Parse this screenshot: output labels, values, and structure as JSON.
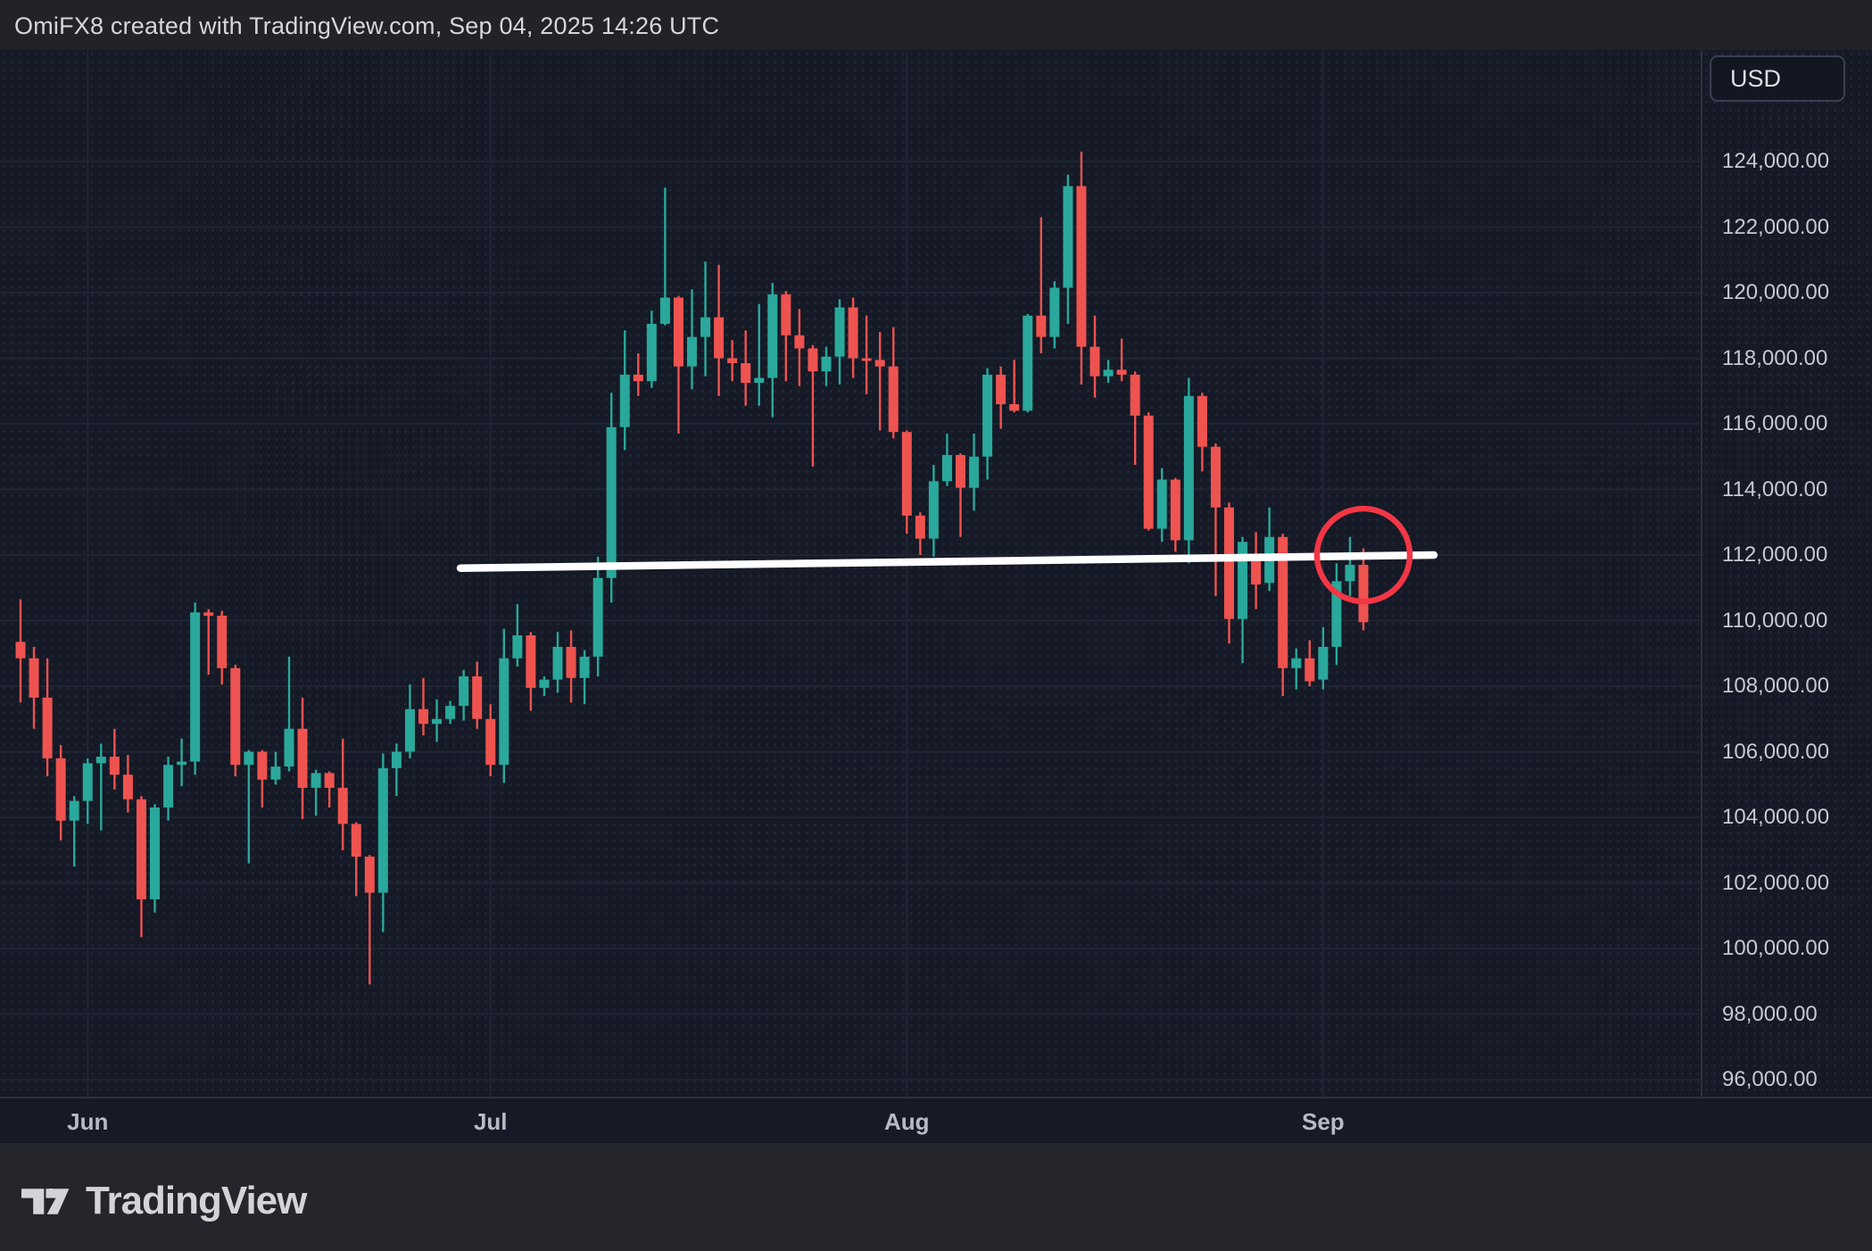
{
  "header": {
    "title": "OmiFX8 created with TradingView.com, Sep 04, 2025 14:26 UTC"
  },
  "price_axis": {
    "currency_label": "USD",
    "ticks": [
      {
        "label": "124,000.00",
        "value": 124000
      },
      {
        "label": "122,000.00",
        "value": 122000
      },
      {
        "label": "120,000.00",
        "value": 120000
      },
      {
        "label": "118,000.00",
        "value": 118000
      },
      {
        "label": "116,000.00",
        "value": 116000
      },
      {
        "label": "114,000.00",
        "value": 114000
      },
      {
        "label": "112,000.00",
        "value": 112000
      },
      {
        "label": "110,000.00",
        "value": 110000
      },
      {
        "label": "108,000.00",
        "value": 108000
      },
      {
        "label": "106,000.00",
        "value": 106000
      },
      {
        "label": "104,000.00",
        "value": 104000
      },
      {
        "label": "102,000.00",
        "value": 102000
      },
      {
        "label": "100,000.00",
        "value": 100000
      },
      {
        "label": "98,000.00",
        "value": 98000
      },
      {
        "label": "96,000.00",
        "value": 96000
      }
    ]
  },
  "time_axis": {
    "months": [
      {
        "label": "Jun",
        "day_index": 5
      },
      {
        "label": "Jul",
        "day_index": 35
      },
      {
        "label": "Aug",
        "day_index": 66
      },
      {
        "label": "Sep",
        "day_index": 97
      }
    ]
  },
  "footer": {
    "brand_name": "TradingView"
  },
  "style": {
    "up_color": "#2aa89b",
    "down_color": "#ef5350",
    "trendline_color": "#ffffff",
    "circle_color": "#f23645",
    "grid_color": "#1f2533",
    "pane_bg": "#151a26",
    "chrome_bg": "#24262b",
    "axis_text_color": "#c6c9d1",
    "separator_color": "#2c313d"
  },
  "chart_data": {
    "type": "candlestick",
    "symbol_currency": "USD",
    "interval": "1D",
    "date_range": [
      "2025-05-27",
      "2025-09-04"
    ],
    "ylim": [
      95500,
      127400
    ],
    "grid": "on",
    "candles_format": [
      "date",
      "open",
      "high",
      "low",
      "close"
    ],
    "candles": [
      [
        "2025-05-27",
        109350,
        110650,
        107500,
        108850
      ],
      [
        "2025-05-28",
        108850,
        109200,
        106700,
        107650
      ],
      [
        "2025-05-29",
        107650,
        108850,
        105250,
        105800
      ],
      [
        "2025-05-30",
        105800,
        106200,
        103300,
        103900
      ],
      [
        "2025-05-31",
        103900,
        104650,
        102500,
        104500
      ],
      [
        "2025-06-01",
        104500,
        105800,
        103800,
        105650
      ],
      [
        "2025-06-02",
        105650,
        106250,
        103600,
        105850
      ],
      [
        "2025-06-03",
        105850,
        106700,
        104850,
        105300
      ],
      [
        "2025-06-04",
        105300,
        105900,
        104150,
        104550
      ],
      [
        "2025-06-05",
        104550,
        104650,
        100350,
        101500
      ],
      [
        "2025-06-06",
        101500,
        104400,
        101100,
        104300
      ],
      [
        "2025-06-07",
        104300,
        105850,
        103900,
        105600
      ],
      [
        "2025-06-08",
        105600,
        106400,
        104950,
        105700
      ],
      [
        "2025-06-09",
        105700,
        110550,
        105300,
        110250
      ],
      [
        "2025-06-10",
        110250,
        110350,
        108350,
        110150
      ],
      [
        "2025-06-11",
        110150,
        110300,
        108050,
        108550
      ],
      [
        "2025-06-12",
        108550,
        108650,
        105250,
        105600
      ],
      [
        "2025-06-13",
        105600,
        106050,
        102600,
        106000
      ],
      [
        "2025-06-14",
        106000,
        106050,
        104300,
        105150
      ],
      [
        "2025-06-15",
        105150,
        106000,
        105000,
        105550
      ],
      [
        "2025-06-16",
        105550,
        108900,
        105400,
        106700
      ],
      [
        "2025-06-17",
        106700,
        107650,
        103950,
        104900
      ],
      [
        "2025-06-18",
        104900,
        105450,
        104050,
        105350
      ],
      [
        "2025-06-19",
        105350,
        105400,
        104300,
        104900
      ],
      [
        "2025-06-20",
        104900,
        106400,
        103000,
        103800
      ],
      [
        "2025-06-21",
        103800,
        103850,
        101600,
        102800
      ],
      [
        "2025-06-22",
        102800,
        102850,
        98900,
        101700
      ],
      [
        "2025-06-23",
        101700,
        105950,
        100500,
        105500
      ],
      [
        "2025-06-24",
        105500,
        106250,
        104650,
        106000
      ],
      [
        "2025-06-25",
        106000,
        108050,
        105800,
        107300
      ],
      [
        "2025-06-26",
        107300,
        108250,
        106500,
        106850
      ],
      [
        "2025-06-27",
        106850,
        107600,
        106300,
        107000
      ],
      [
        "2025-06-28",
        107000,
        107550,
        106850,
        107400
      ],
      [
        "2025-06-29",
        107400,
        108500,
        106950,
        108300
      ],
      [
        "2025-06-30",
        108300,
        108750,
        106700,
        107000
      ],
      [
        "2025-07-01",
        107000,
        107450,
        105250,
        105600
      ],
      [
        "2025-07-02",
        105600,
        109750,
        105050,
        108850
      ],
      [
        "2025-07-03",
        108850,
        110500,
        108600,
        109550
      ],
      [
        "2025-07-04",
        109550,
        109650,
        107250,
        107950
      ],
      [
        "2025-07-05",
        107950,
        108300,
        107700,
        108200
      ],
      [
        "2025-07-06",
        108200,
        109650,
        107800,
        109200
      ],
      [
        "2025-07-07",
        109200,
        109700,
        107500,
        108250
      ],
      [
        "2025-07-08",
        108250,
        109100,
        107450,
        108900
      ],
      [
        "2025-07-09",
        108900,
        111950,
        108300,
        111300
      ],
      [
        "2025-07-10",
        111300,
        116950,
        110550,
        115900
      ],
      [
        "2025-07-11",
        115900,
        118850,
        115200,
        117500
      ],
      [
        "2025-07-12",
        117500,
        118150,
        116850,
        117300
      ],
      [
        "2025-07-13",
        117300,
        119450,
        117100,
        119050
      ],
      [
        "2025-07-14",
        119050,
        123200,
        119000,
        119850
      ],
      [
        "2025-07-15",
        119850,
        119900,
        115700,
        117750
      ],
      [
        "2025-07-16",
        117750,
        120100,
        117050,
        118650
      ],
      [
        "2025-07-17",
        118650,
        120950,
        117450,
        119250
      ],
      [
        "2025-07-18",
        119250,
        120850,
        116850,
        118000
      ],
      [
        "2025-07-19",
        118000,
        118550,
        117300,
        117850
      ],
      [
        "2025-07-20",
        117850,
        118850,
        116550,
        117250
      ],
      [
        "2025-07-21",
        117250,
        119650,
        116550,
        117400
      ],
      [
        "2025-07-22",
        117400,
        120300,
        116200,
        119950
      ],
      [
        "2025-07-23",
        119950,
        120050,
        117300,
        118700
      ],
      [
        "2025-07-24",
        118700,
        119500,
        117150,
        118300
      ],
      [
        "2025-07-25",
        118300,
        118400,
        114700,
        117600
      ],
      [
        "2025-07-26",
        117600,
        118350,
        117150,
        118050
      ],
      [
        "2025-07-27",
        118050,
        119800,
        117200,
        119550
      ],
      [
        "2025-07-28",
        119550,
        119850,
        117400,
        118000
      ],
      [
        "2025-07-29",
        118000,
        119300,
        116900,
        117950
      ],
      [
        "2025-07-30",
        117950,
        118800,
        115800,
        117750
      ],
      [
        "2025-07-31",
        117750,
        118950,
        115550,
        115750
      ],
      [
        "2025-08-01",
        115750,
        115800,
        112650,
        113200
      ],
      [
        "2025-08-02",
        113200,
        113300,
        112000,
        112500
      ],
      [
        "2025-08-03",
        112500,
        114750,
        111950,
        114250
      ],
      [
        "2025-08-04",
        114250,
        115700,
        114100,
        115050
      ],
      [
        "2025-08-05",
        115050,
        115100,
        112550,
        114050
      ],
      [
        "2025-08-06",
        114050,
        115700,
        113350,
        115000
      ],
      [
        "2025-08-07",
        115000,
        117700,
        114300,
        117500
      ],
      [
        "2025-08-08",
        117500,
        117750,
        115850,
        116600
      ],
      [
        "2025-08-09",
        116600,
        117950,
        116350,
        116400
      ],
      [
        "2025-08-10",
        116400,
        119350,
        116350,
        119300
      ],
      [
        "2025-08-11",
        119300,
        122300,
        118150,
        118650
      ],
      [
        "2025-08-12",
        118650,
        120350,
        118300,
        120150
      ],
      [
        "2025-08-13",
        120150,
        123600,
        119050,
        123250
      ],
      [
        "2025-08-14",
        123250,
        124300,
        117200,
        118350
      ],
      [
        "2025-08-15",
        118350,
        119300,
        116800,
        117450
      ],
      [
        "2025-08-16",
        117450,
        117950,
        117250,
        117650
      ],
      [
        "2025-08-17",
        117650,
        118600,
        117300,
        117500
      ],
      [
        "2025-08-18",
        117500,
        117600,
        114750,
        116250
      ],
      [
        "2025-08-19",
        116250,
        116350,
        112750,
        112800
      ],
      [
        "2025-08-20",
        112800,
        114650,
        112400,
        114300
      ],
      [
        "2025-08-21",
        114300,
        114350,
        112100,
        112450
      ],
      [
        "2025-08-22",
        112450,
        117400,
        111750,
        116850
      ],
      [
        "2025-08-23",
        116850,
        116950,
        114550,
        115300
      ],
      [
        "2025-08-24",
        115300,
        115400,
        110750,
        113450
      ],
      [
        "2025-08-25",
        113450,
        113600,
        109300,
        110050
      ],
      [
        "2025-08-26",
        110050,
        112550,
        108700,
        112400
      ],
      [
        "2025-08-27",
        111850,
        112700,
        110350,
        111100
      ],
      [
        "2025-08-28",
        111150,
        113450,
        110900,
        112550
      ],
      [
        "2025-08-29",
        112550,
        112650,
        107700,
        108550
      ],
      [
        "2025-08-30",
        108550,
        109150,
        107900,
        108850
      ],
      [
        "2025-08-31",
        108850,
        109400,
        108000,
        108150
      ],
      [
        "2025-09-01",
        108200,
        109800,
        107900,
        109200
      ],
      [
        "2025-09-02",
        109200,
        111750,
        108650,
        111200
      ],
      [
        "2025-09-03",
        111200,
        112550,
        110750,
        111700
      ],
      [
        "2025-09-04",
        111700,
        112200,
        109700,
        109950
      ]
    ],
    "annotations": {
      "trendline": {
        "type": "line",
        "x1_day_index": 32.76,
        "price1": 111600,
        "x2_day_index": 105.25,
        "price2": 112000,
        "stroke_width": 8.5
      },
      "highlight_circle": {
        "type": "circle",
        "center_day_index": 100,
        "center_price": 112000,
        "radius_px": 52,
        "stroke_width": 6.5
      }
    }
  }
}
